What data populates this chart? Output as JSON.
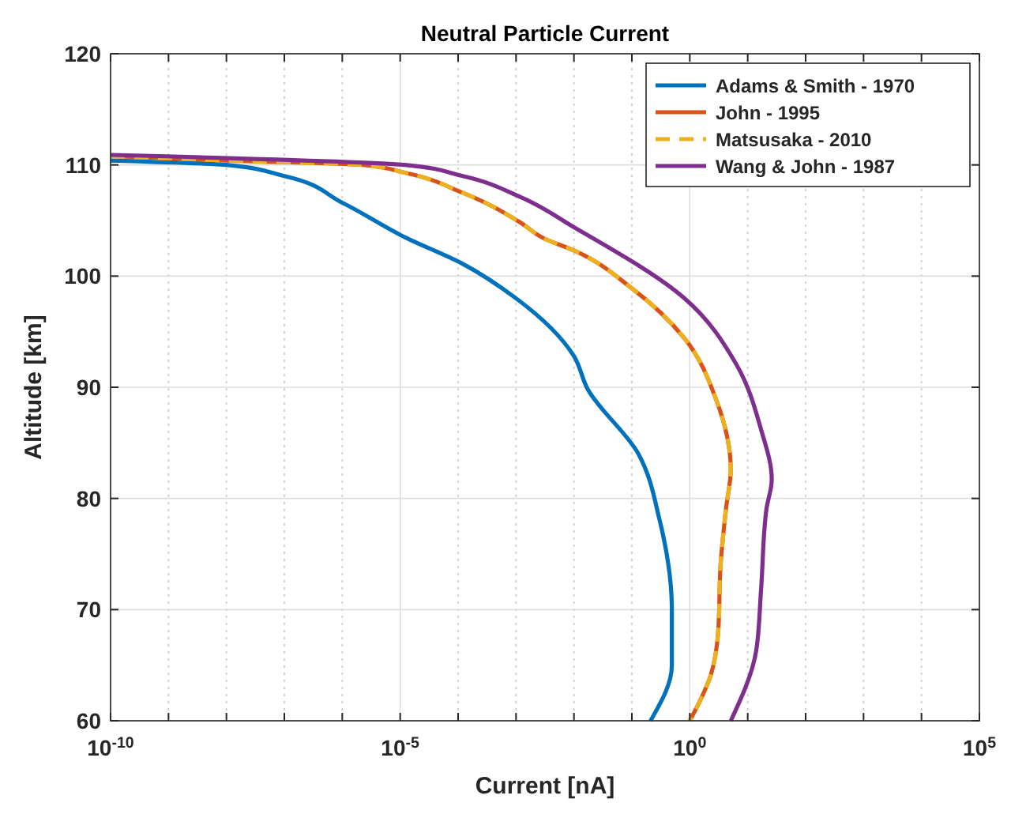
{
  "chart_data": {
    "type": "line",
    "title": "Neutral Particle Current",
    "xlabel": "Current [nA]",
    "ylabel": "Altitude [km]",
    "log": "x",
    "grid": true,
    "legend": "top right",
    "xlim": [
      1e-10,
      100000
    ],
    "ylim": [
      60,
      120
    ],
    "xticks": [
      {
        "value": 1e-10,
        "label": "10$^{-10}$"
      },
      {
        "value": 1e-09,
        "label": null
      },
      {
        "value": 1e-08,
        "label": null
      },
      {
        "value": 1e-07,
        "label": null
      },
      {
        "value": 1e-06,
        "label": null
      },
      {
        "value": 1e-05,
        "label": "10$^{-5}$"
      },
      {
        "value": 0.0001,
        "label": null
      },
      {
        "value": 0.001,
        "label": null
      },
      {
        "value": 0.01,
        "label": null
      },
      {
        "value": 0.1,
        "label": null
      },
      {
        "value": 1,
        "label": "10$^{0}$"
      },
      {
        "value": 10,
        "label": null
      },
      {
        "value": 100,
        "label": null
      },
      {
        "value": 1000,
        "label": null
      },
      {
        "value": 10000,
        "label": null
      },
      {
        "value": 100000,
        "label": "10$^{5}$"
      }
    ],
    "yticks": [
      60,
      70,
      80,
      90,
      100,
      110,
      120
    ],
    "series": [
      {
        "name": "Adams & Smith - 1970",
        "color": "#0072bd",
        "line_style": "solid",
        "x": [
          1e-10,
          1e-08,
          1e-07,
          1e-06,
          1.2e-05,
          0.00012,
          0.001,
          0.01,
          0.017,
          0.13,
          0.3,
          0.49,
          0.49,
          0.21
        ],
        "values": [
          110.4,
          110,
          109,
          106.6,
          103.5,
          101.1,
          98,
          92.8,
          89.9,
          84,
          78.1,
          70,
          65,
          60
        ]
      },
      {
        "name": "John - 1995",
        "color": "#d95319",
        "line_style": "solid",
        "x": [
          1e-10,
          1e-08,
          2.3e-06,
          1.2e-05,
          0.00012,
          0.0012,
          0.003,
          0.01,
          0.1,
          0.81,
          2.8,
          5.1,
          4.2,
          3.4,
          3.1,
          2.3,
          1
        ],
        "values": [
          110.8,
          110.4,
          110,
          109.3,
          107.5,
          104.8,
          103.4,
          102.3,
          98.9,
          94.4,
          89,
          82.6,
          79,
          74,
          68.1,
          64.1,
          60
        ]
      },
      {
        "name": "Matsusaka - 2010",
        "color": "#edb120",
        "line_style": "dashed",
        "x": [
          1e-10,
          1e-08,
          2.3e-06,
          1.2e-05,
          0.00012,
          0.0012,
          0.003,
          0.01,
          0.1,
          0.81,
          2.8,
          5.1,
          4.2,
          3.4,
          3.1,
          2.3,
          1
        ],
        "values": [
          110.8,
          110.4,
          110,
          109.3,
          107.5,
          104.8,
          103.4,
          102.3,
          98.9,
          94.4,
          89,
          82.6,
          79,
          74,
          68.1,
          64.1,
          60
        ]
      },
      {
        "name": "Wang & John - 1987",
        "color": "#7e2f8e",
        "line_style": "solid",
        "x": [
          1e-10,
          1.2e-05,
          0.00012,
          0.0012,
          0.01,
          0.81,
          6.3,
          17,
          26,
          21,
          17,
          14,
          5.1
        ],
        "values": [
          110.9,
          110,
          109,
          107.1,
          104.4,
          98,
          92.1,
          86.2,
          81.7,
          79,
          71.8,
          66.3,
          60
        ]
      }
    ]
  }
}
